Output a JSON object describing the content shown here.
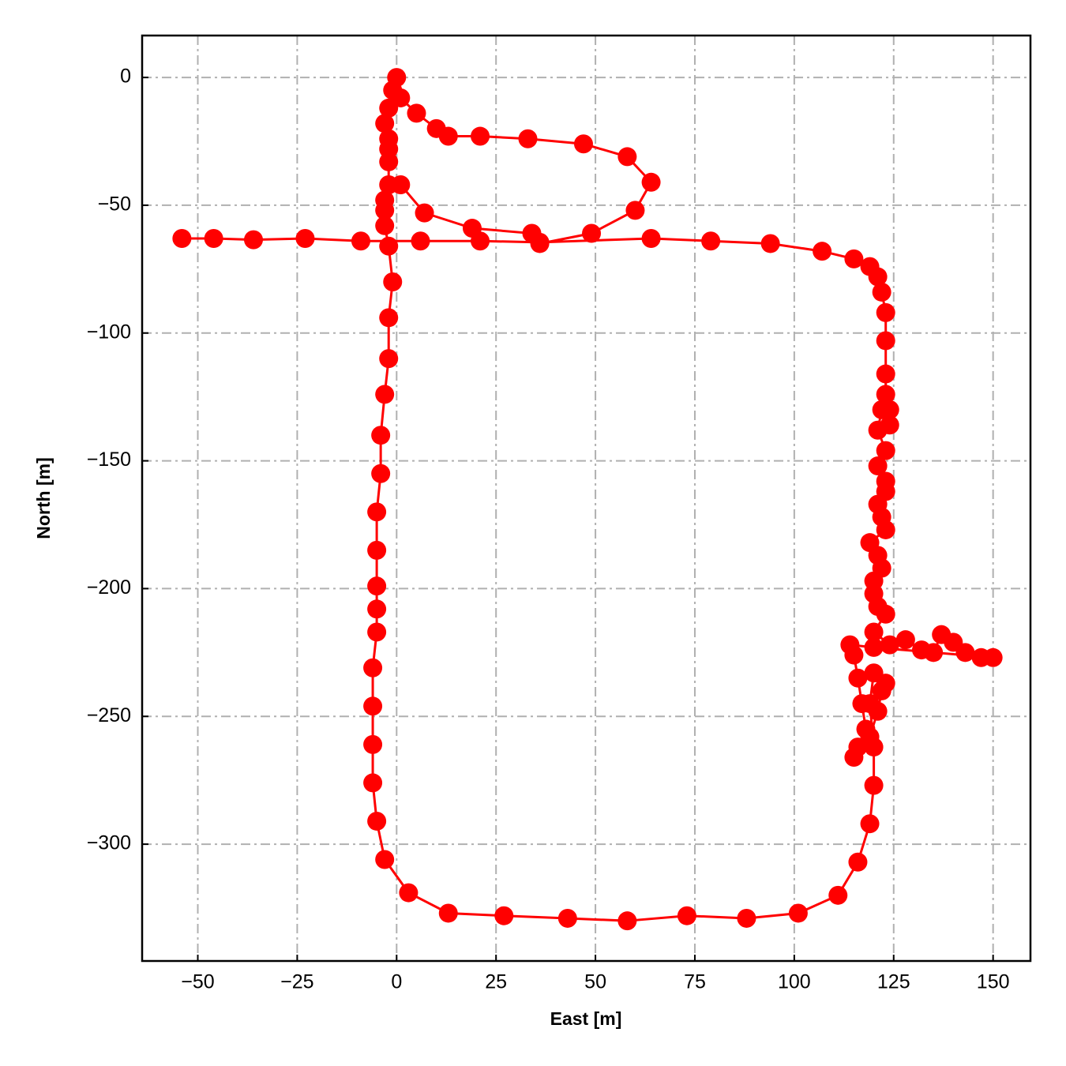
{
  "chart_data": {
    "type": "line",
    "x_label": "East [m]",
    "y_label": "North [m]",
    "color": "#ff0000",
    "grid": true,
    "markers": true,
    "xlim": [
      -64,
      159.4
    ],
    "ylim": [
      -345.7,
      16.4
    ],
    "xticks": [
      {
        "value": -50,
        "label": "−50"
      },
      {
        "value": -25,
        "label": "−25"
      },
      0,
      25,
      50,
      75,
      100,
      125,
      150
    ],
    "yticks": [
      0,
      {
        "value": -50,
        "label": "−50"
      },
      {
        "value": -100,
        "label": "−100"
      },
      {
        "value": -150,
        "label": "−150"
      },
      {
        "value": -200,
        "label": "−200"
      },
      {
        "value": -250,
        "label": "−250"
      },
      {
        "value": -300,
        "label": "−300"
      }
    ],
    "x": [
      -54,
      -46,
      -36,
      -23,
      -9,
      6,
      21,
      36,
      64,
      79,
      94,
      107,
      115,
      119,
      121,
      122,
      123,
      123,
      123,
      123,
      124,
      124,
      122,
      121,
      123,
      121,
      123,
      123,
      121,
      122,
      123,
      119,
      121,
      122,
      120,
      120,
      121,
      123,
      120,
      124,
      128,
      132,
      135,
      137,
      140,
      143,
      147,
      150,
      120,
      114,
      115,
      116,
      117,
      118,
      116,
      115,
      119,
      121,
      122,
      123,
      120,
      119,
      120,
      120,
      119,
      116,
      111,
      101,
      88,
      73,
      58,
      43,
      27,
      13,
      3,
      -3,
      -5,
      -6,
      -6,
      -6,
      -6,
      -5,
      -5,
      -5,
      -5,
      -5,
      -4,
      -4,
      -3,
      -2,
      -2,
      -1,
      -2,
      -3,
      -3,
      -3,
      -2,
      -2,
      -2,
      -2,
      -3,
      -2,
      -1,
      0,
      1,
      5,
      10,
      13,
      21,
      33,
      47,
      58,
      64,
      60,
      49,
      36,
      34,
      19,
      7,
      1
    ],
    "values": [
      -63,
      -63,
      -63.5,
      -63,
      -64,
      -64,
      -64,
      -64.5,
      -63,
      -64,
      -65,
      -68,
      -71,
      -74,
      -78,
      -84,
      -92,
      -103,
      -116,
      -124,
      -130,
      -136,
      -130,
      -138,
      -146,
      -152,
      -158,
      -162,
      -167,
      -172,
      -177,
      -182,
      -187,
      -192,
      -197,
      -202,
      -207,
      -210,
      -217,
      -222,
      -220,
      -224,
      -225,
      -218,
      -221,
      -225,
      -227,
      -227,
      -223,
      -222,
      -226,
      -235,
      -245,
      -255,
      -262,
      -266,
      -258,
      -248,
      -240,
      -237,
      -233,
      -245,
      -262,
      -277,
      -292,
      -307,
      -320,
      -327,
      -329,
      -328,
      -330,
      -329,
      -328,
      -327,
      -319,
      -306,
      -291,
      -276,
      -261,
      -246,
      -231,
      -217,
      -208,
      -199,
      -185,
      -170,
      -155,
      -140,
      -124,
      -110,
      -94,
      -80,
      -66,
      -58,
      -52,
      -48,
      -42,
      -33,
      -28,
      -24,
      -18,
      -12,
      -5,
      0,
      -8,
      -14,
      -20,
      -23,
      -23,
      -24,
      -26,
      -31,
      -41,
      -52,
      -61,
      -65,
      -61,
      -59,
      -53,
      -42
    ]
  }
}
